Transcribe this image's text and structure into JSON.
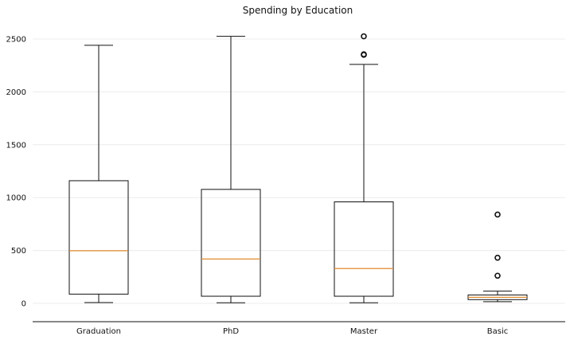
{
  "chart_data": {
    "type": "boxplot",
    "title": "Spending by Education",
    "xlabel": "",
    "ylabel": "",
    "categories": [
      "Graduation",
      "PhD",
      "Master",
      "Basic"
    ],
    "series": [
      {
        "category": "Graduation",
        "whisker_low": 8,
        "q1": 88,
        "median": 498,
        "q3": 1160,
        "whisker_high": 2440,
        "outliers": []
      },
      {
        "category": "PhD",
        "whisker_low": 6,
        "q1": 68,
        "median": 420,
        "q3": 1078,
        "whisker_high": 2525,
        "outliers": []
      },
      {
        "category": "Master",
        "whisker_low": 6,
        "q1": 68,
        "median": 330,
        "q3": 960,
        "whisker_high": 2260,
        "outliers": [
          2350,
          2355,
          2525
        ]
      },
      {
        "category": "Basic",
        "whisker_low": 16,
        "q1": 36,
        "median": 58,
        "q3": 80,
        "whisker_high": 116,
        "outliers": [
          262,
          432,
          840
        ]
      }
    ],
    "y_ticks": [
      0,
      500,
      1000,
      1500,
      2000,
      2500
    ],
    "ylim": [
      -120,
      2620
    ],
    "grid": true,
    "median_color": "#e08a2c",
    "box_color": "#111111"
  }
}
